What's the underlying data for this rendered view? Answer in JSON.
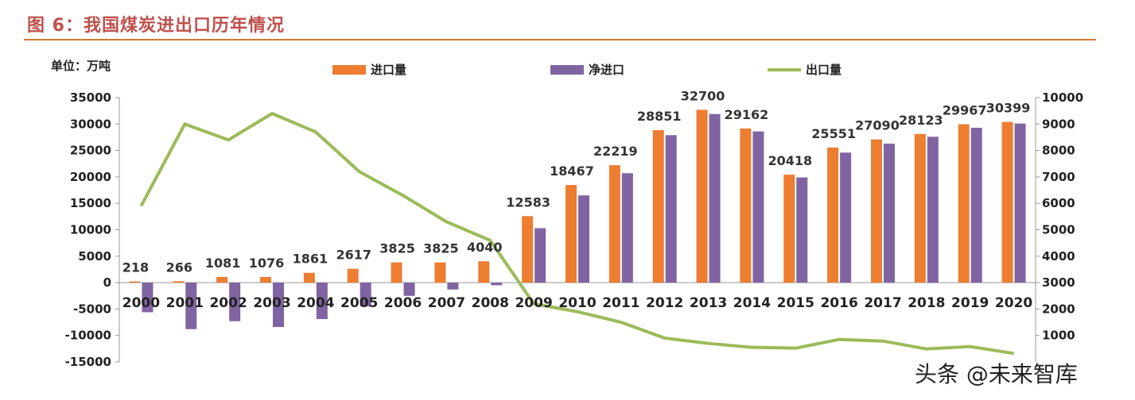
{
  "title": "图 6：我国煤炭进出口历年情况",
  "unit_label": "单位：万吨",
  "watermark": "头条 @未来智库",
  "colors": {
    "import": "#ed7d31",
    "net_import": "#8064a2",
    "export": "#9bbb59"
  },
  "chart_data": {
    "type": "bar",
    "categories": [
      "2000",
      "2001",
      "2002",
      "2003",
      "2004",
      "2005",
      "2006",
      "2007",
      "2008",
      "2009",
      "2010",
      "2011",
      "2012",
      "2013",
      "2014",
      "2015",
      "2016",
      "2017",
      "2018",
      "2019",
      "2020"
    ],
    "series": [
      {
        "name": "进口量",
        "type": "bar",
        "axis": "left",
        "values": [
          218,
          266,
          1081,
          1076,
          1861,
          2617,
          3825,
          3825,
          4040,
          12583,
          18467,
          22219,
          28851,
          32700,
          29162,
          20418,
          25551,
          27090,
          28123,
          29967,
          30399
        ]
      },
      {
        "name": "净进口",
        "type": "bar",
        "axis": "left",
        "values": [
          -5600,
          -8800,
          -7300,
          -8400,
          -6900,
          -4500,
          -2500,
          -1300,
          -500,
          10300,
          16500,
          20700,
          27900,
          31900,
          28600,
          19900,
          24600,
          26300,
          27600,
          29300,
          30100
        ]
      },
      {
        "name": "出口量",
        "type": "line",
        "axis": "right",
        "values": [
          5900,
          9000,
          8400,
          9400,
          8700,
          7200,
          6300,
          5300,
          4600,
          2200,
          1900,
          1500,
          900,
          700,
          550,
          520,
          850,
          790,
          490,
          580,
          320
        ]
      }
    ],
    "data_labels": [
      "218",
      "266",
      "1081",
      "1076",
      "1861",
      "2617",
      "3825",
      "3825",
      "4040",
      "12583",
      "18467",
      "22219",
      "28851",
      "32700",
      "29162",
      "20418",
      "25551",
      "27090",
      "28123",
      "29967",
      "30399"
    ],
    "ylim_left": [
      -15000,
      35000
    ],
    "ylim_right": [
      0,
      10000
    ],
    "yticks_left": [
      "35000",
      "30000",
      "25000",
      "20000",
      "15000",
      "10000",
      "5000",
      "0",
      "-5000",
      "-10000",
      "-15000"
    ],
    "yticks_right": [
      "10000",
      "9000",
      "8000",
      "7000",
      "6000",
      "5000",
      "4000",
      "3000",
      "2000",
      "1000"
    ],
    "grid": false,
    "legend_position": "top"
  }
}
